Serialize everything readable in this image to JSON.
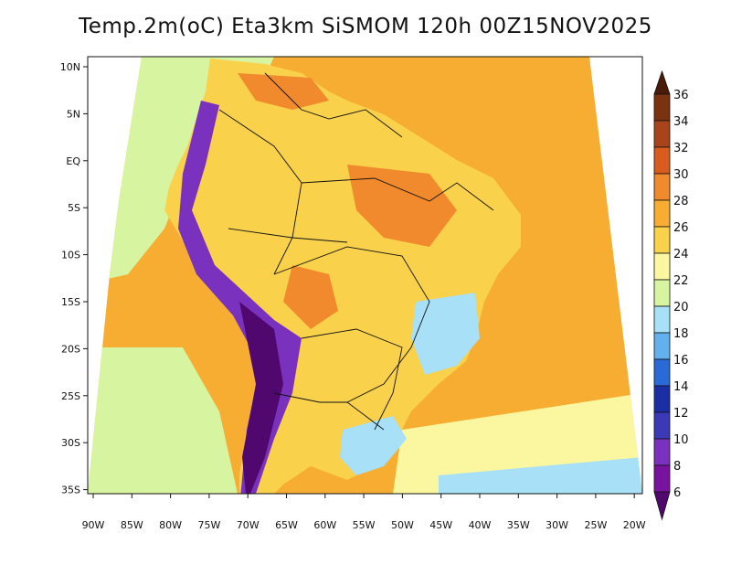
{
  "title": "Temp.2m(oC) Eta3km SiSMOM 120h 00Z15NOV2025",
  "lat_labels": [
    "10N",
    "5N",
    "EQ",
    "5S",
    "10S",
    "15S",
    "20S",
    "25S",
    "30S",
    "35S"
  ],
  "lon_labels": [
    "90W",
    "85W",
    "80W",
    "75W",
    "70W",
    "65W",
    "60W",
    "55W",
    "50W",
    "45W",
    "40W",
    "35W",
    "30W",
    "25W",
    "20W"
  ],
  "colorbar": {
    "labels": [
      "36",
      "34",
      "32",
      "30",
      "28",
      "26",
      "24",
      "22",
      "20",
      "18",
      "16",
      "14",
      "12",
      "10",
      "8",
      "6"
    ],
    "colors": [
      "#4a1b08",
      "#7b3210",
      "#a8441b",
      "#d75c1e",
      "#f08a2c",
      "#f6ad32",
      "#f9d14a",
      "#fbf7a0",
      "#d7f5a0",
      "#a7e0f7",
      "#62b0ee",
      "#2a6ad6",
      "#1a2ea6",
      "#3a39b8",
      "#7a32be",
      "#7a12a0",
      "#50086e"
    ]
  },
  "palette": {
    "ocean": "#f6ad32",
    "ocean_south": "#fbf7a0",
    "cold_sea": "#a7e0f7",
    "land": "#f9d14a",
    "land_hot": "#f08a2c",
    "andes": "#7a32be",
    "andes_cold": "#50086e",
    "pacific_cool": "#d7f5a0"
  }
}
